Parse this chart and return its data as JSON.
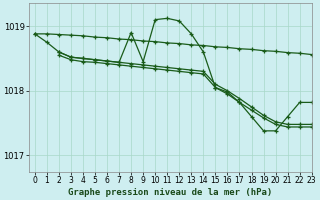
{
  "title": "Graphe pression niveau de la mer (hPa)",
  "background_color": "#ceeef0",
  "plot_bg_color": "#ceeef0",
  "grid_color": "#a8d8c8",
  "line_color": "#1a5c1a",
  "xlim": [
    -0.5,
    23
  ],
  "ylim": [
    1016.75,
    1019.35
  ],
  "yticks": [
    1017,
    1018,
    1019
  ],
  "xticks": [
    0,
    1,
    2,
    3,
    4,
    5,
    6,
    7,
    8,
    9,
    10,
    11,
    12,
    13,
    14,
    15,
    16,
    17,
    18,
    19,
    20,
    21,
    22,
    23
  ],
  "s1_x": [
    0,
    1,
    2,
    3,
    4,
    5,
    6,
    7,
    8,
    9,
    10,
    11,
    12,
    13,
    14,
    15,
    16,
    17,
    18,
    19,
    20,
    21,
    22,
    23
  ],
  "s1_y": [
    1018.88,
    1018.88,
    1018.87,
    1018.86,
    1018.85,
    1018.83,
    1018.82,
    1018.8,
    1018.79,
    1018.77,
    1018.76,
    1018.74,
    1018.73,
    1018.71,
    1018.7,
    1018.68,
    1018.67,
    1018.65,
    1018.64,
    1018.62,
    1018.61,
    1018.59,
    1018.58,
    1018.56
  ],
  "s2_x": [
    0,
    1,
    2,
    3,
    4,
    5,
    6,
    7,
    8,
    9,
    10,
    11,
    12,
    13,
    14,
    15,
    16,
    17,
    18,
    19,
    20,
    21,
    22,
    23
  ],
  "s2_y": [
    1018.88,
    1018.75,
    1018.6,
    1018.52,
    1018.5,
    1018.48,
    1018.46,
    1018.44,
    1018.9,
    1018.45,
    1019.1,
    1019.12,
    1019.08,
    1018.88,
    1018.6,
    1018.05,
    1017.98,
    1017.82,
    1017.6,
    1017.38,
    1017.38,
    1017.6,
    1017.82,
    1017.82
  ],
  "s3_x": [
    2,
    3,
    4,
    5,
    6,
    7,
    8,
    9,
    10,
    11,
    12,
    13,
    14,
    15,
    16,
    17,
    18,
    19,
    20,
    21,
    22,
    23
  ],
  "s3_y": [
    1018.6,
    1018.52,
    1018.5,
    1018.48,
    1018.46,
    1018.44,
    1018.42,
    1018.4,
    1018.38,
    1018.36,
    1018.34,
    1018.32,
    1018.3,
    1018.1,
    1018.0,
    1017.88,
    1017.75,
    1017.62,
    1017.52,
    1017.48,
    1017.48,
    1017.48
  ],
  "s4_x": [
    2,
    3,
    4,
    5,
    6,
    7,
    8,
    9,
    10,
    11,
    12,
    13,
    14,
    15,
    16,
    17,
    18,
    19,
    20,
    21,
    22,
    23
  ],
  "s4_y": [
    1018.55,
    1018.48,
    1018.45,
    1018.44,
    1018.42,
    1018.4,
    1018.38,
    1018.36,
    1018.34,
    1018.32,
    1018.3,
    1018.28,
    1018.26,
    1018.05,
    1017.95,
    1017.82,
    1017.7,
    1017.58,
    1017.48,
    1017.44,
    1017.44,
    1017.44
  ]
}
